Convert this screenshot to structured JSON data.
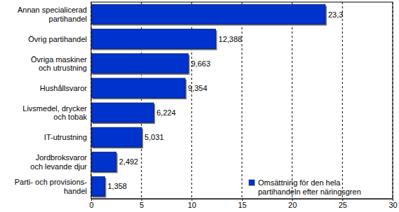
{
  "chart_data": {
    "type": "bar",
    "orientation": "horizontal",
    "categories": [
      "Annan specialicerad\npartihandel",
      "Övrig partihandel",
      "Övriga maskiner\noch utrustning",
      "Hushållsvaror",
      "Livsmedel, drycker\noch tobak",
      "IT-utrustning",
      "Jordbroksvaror\noch levande djur",
      "Parti- och provisions-\nhandel"
    ],
    "series": [
      {
        "name": "Omsättning för den hela\npartihandeln efter näringsgren",
        "color": "#0033cc",
        "values": [
          23.3,
          12.388,
          9.663,
          9.354,
          6.224,
          5.031,
          2.492,
          1.358
        ],
        "value_labels": [
          "23,3",
          "12,388",
          "9,663",
          "9,354",
          "6,224",
          "5,031",
          "2,492",
          "1,358"
        ]
      }
    ],
    "xlim": [
      0,
      30
    ],
    "xticks": [
      0,
      5,
      10,
      15,
      20,
      25,
      30
    ],
    "grid": true,
    "data_labels": true,
    "legend": "lower right"
  }
}
